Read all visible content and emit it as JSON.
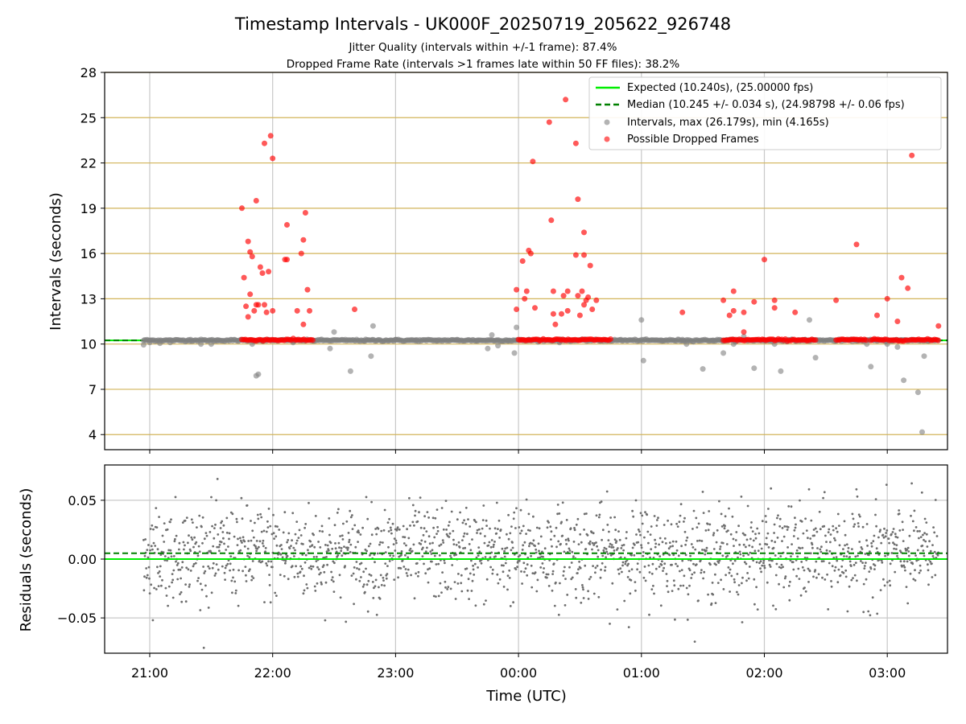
{
  "colors": {
    "expected": "#00ee00",
    "median": "#008000",
    "intervals": "#808080",
    "dropped": "#ff0000",
    "residuals": "#6e6e6e",
    "hgrid_top": "#d2b45a",
    "grid": "#c8c8c8"
  },
  "chart_data": [
    {
      "type": "scatter",
      "title": "Timestamp Intervals - UK000F_20250719_205622_926748",
      "subtitle_lines": [
        "Jitter Quality (intervals within +/-1 frame): 87.4%",
        "Dropped Frame Rate (intervals >1 frames late within 50 FF files): 38.2%"
      ],
      "ylabel": "Intervals (seconds)",
      "xlabel": "Time (UTC)",
      "ylim": [
        3,
        28
      ],
      "yticks": [
        4,
        7,
        10,
        13,
        16,
        19,
        22,
        25,
        28
      ],
      "xticks": [
        "21:00",
        "22:00",
        "23:00",
        "00:00",
        "01:00",
        "02:00",
        "03:00"
      ],
      "grid": true,
      "legend_position": "top-right",
      "legend": [
        "Expected (10.240s), (25.00000 fps)",
        "Median (10.245 +/- 0.034 s), (24.98798 +/- 0.06 fps)",
        "Intervals, max (26.179s), min (4.165s)",
        "Possible Dropped Frames"
      ],
      "expected": 10.24,
      "median": 10.245,
      "series": [
        {
          "name": "Intervals, max (26.179s), min (4.165s)",
          "points": [
            [
              "20:57",
              9.95
            ],
            [
              "21:00",
              10.1
            ],
            [
              "21:05",
              10.05
            ],
            [
              "21:10",
              10.1
            ],
            [
              "21:20",
              10.3
            ],
            [
              "21:25",
              10.0
            ],
            [
              "21:30",
              10.0
            ],
            [
              "21:33",
              10.2
            ],
            [
              "21:50",
              10.0
            ],
            [
              "21:52",
              7.9
            ],
            [
              "21:53",
              8.0
            ],
            [
              "21:55",
              10.2
            ],
            [
              "22:10",
              10.1
            ],
            [
              "22:20",
              10.2
            ],
            [
              "22:28",
              9.7
            ],
            [
              "22:30",
              10.8
            ],
            [
              "22:38",
              8.2
            ],
            [
              "22:45",
              10.2
            ],
            [
              "22:48",
              9.2
            ],
            [
              "22:49",
              11.2
            ],
            [
              "23:00",
              10.3
            ],
            [
              "23:10",
              10.2
            ],
            [
              "23:20",
              10.2
            ],
            [
              "23:30",
              10.3
            ],
            [
              "23:40",
              10.2
            ],
            [
              "23:45",
              9.7
            ],
            [
              "23:47",
              10.6
            ],
            [
              "23:50",
              9.9
            ],
            [
              "23:55",
              10.2
            ],
            [
              "23:58",
              9.4
            ],
            [
              "23:59",
              11.1
            ],
            [
              "00:05",
              10.3
            ],
            [
              "00:10",
              10.2
            ],
            [
              "00:20",
              10.1
            ],
            [
              "00:40",
              10.2
            ],
            [
              "00:50",
              10.3
            ],
            [
              "01:00",
              11.6
            ],
            [
              "01:01",
              8.9
            ],
            [
              "01:10",
              10.2
            ],
            [
              "01:20",
              10.3
            ],
            [
              "01:22",
              10.0
            ],
            [
              "01:30",
              8.35
            ],
            [
              "01:35",
              10.2
            ],
            [
              "01:40",
              9.4
            ],
            [
              "01:45",
              10.0
            ],
            [
              "01:50",
              10.5
            ],
            [
              "01:55",
              8.4
            ],
            [
              "02:00",
              10.2
            ],
            [
              "02:05",
              10.0
            ],
            [
              "02:08",
              8.2
            ],
            [
              "02:20",
              10.3
            ],
            [
              "02:22",
              11.6
            ],
            [
              "02:25",
              9.1
            ],
            [
              "02:35",
              10.2
            ],
            [
              "02:45",
              10.3
            ],
            [
              "02:50",
              10.0
            ],
            [
              "02:52",
              8.5
            ],
            [
              "02:55",
              10.2
            ],
            [
              "03:00",
              10.0
            ],
            [
              "03:05",
              9.8
            ],
            [
              "03:08",
              7.6
            ],
            [
              "03:12",
              10.3
            ],
            [
              "03:15",
              6.8
            ],
            [
              "03:17",
              4.17
            ],
            [
              "03:18",
              9.2
            ],
            [
              "03:20",
              10.2
            ]
          ]
        },
        {
          "name": "Possible Dropped Frames",
          "points": [
            [
              "21:45",
              19.0
            ],
            [
              "21:46",
              14.4
            ],
            [
              "21:47",
              12.5
            ],
            [
              "21:48",
              16.8
            ],
            [
              "21:48",
              11.8
            ],
            [
              "21:49",
              16.1
            ],
            [
              "21:49",
              13.3
            ],
            [
              "21:50",
              15.8
            ],
            [
              "21:51",
              12.2
            ],
            [
              "21:52",
              19.5
            ],
            [
              "21:52",
              12.6
            ],
            [
              "21:53",
              12.6
            ],
            [
              "21:54",
              15.1
            ],
            [
              "21:55",
              14.7
            ],
            [
              "21:56",
              12.6
            ],
            [
              "21:56",
              23.3
            ],
            [
              "21:57",
              12.1
            ],
            [
              "21:58",
              14.8
            ],
            [
              "21:59",
              23.8
            ],
            [
              "22:00",
              22.3
            ],
            [
              "22:00",
              12.2
            ],
            [
              "22:06",
              15.6
            ],
            [
              "22:07",
              17.9
            ],
            [
              "22:07",
              15.6
            ],
            [
              "22:12",
              12.2
            ],
            [
              "22:14",
              16.0
            ],
            [
              "22:15",
              16.9
            ],
            [
              "22:15",
              11.3
            ],
            [
              "22:16",
              18.7
            ],
            [
              "22:17",
              13.6
            ],
            [
              "22:18",
              12.2
            ],
            [
              "22:40",
              12.3
            ],
            [
              "23:59",
              13.6
            ],
            [
              "23:59",
              12.3
            ],
            [
              "00:02",
              15.5
            ],
            [
              "00:03",
              13.0
            ],
            [
              "00:04",
              13.5
            ],
            [
              "00:05",
              16.2
            ],
            [
              "00:06",
              16.0
            ],
            [
              "00:07",
              22.1
            ],
            [
              "00:08",
              12.4
            ],
            [
              "00:15",
              24.7
            ],
            [
              "00:16",
              18.2
            ],
            [
              "00:17",
              13.5
            ],
            [
              "00:17",
              12.0
            ],
            [
              "00:18",
              11.3
            ],
            [
              "00:21",
              12.0
            ],
            [
              "00:22",
              13.2
            ],
            [
              "00:23",
              26.2
            ],
            [
              "00:24",
              13.5
            ],
            [
              "00:24",
              12.2
            ],
            [
              "00:28",
              23.3
            ],
            [
              "00:28",
              15.9
            ],
            [
              "00:29",
              19.6
            ],
            [
              "00:29",
              13.2
            ],
            [
              "00:30",
              11.9
            ],
            [
              "00:31",
              13.5
            ],
            [
              "00:32",
              17.4
            ],
            [
              "00:32",
              15.9
            ],
            [
              "00:32",
              12.6
            ],
            [
              "00:33",
              12.9
            ],
            [
              "00:34",
              13.1
            ],
            [
              "00:35",
              15.2
            ],
            [
              "00:36",
              12.3
            ],
            [
              "00:38",
              12.9
            ],
            [
              "01:20",
              12.1
            ],
            [
              "01:40",
              12.9
            ],
            [
              "01:43",
              11.9
            ],
            [
              "01:45",
              12.2
            ],
            [
              "01:45",
              13.5
            ],
            [
              "01:50",
              12.1
            ],
            [
              "01:50",
              10.8
            ],
            [
              "01:55",
              12.8
            ],
            [
              "02:00",
              15.6
            ],
            [
              "02:05",
              12.4
            ],
            [
              "02:05",
              12.9
            ],
            [
              "02:15",
              12.1
            ],
            [
              "02:35",
              12.9
            ],
            [
              "02:45",
              16.6
            ],
            [
              "02:55",
              11.9
            ],
            [
              "03:00",
              13.0
            ],
            [
              "03:05",
              11.5
            ],
            [
              "03:07",
              14.4
            ],
            [
              "03:10",
              13.7
            ],
            [
              "03:12",
              22.5
            ],
            [
              "03:25",
              11.2
            ]
          ]
        }
      ]
    },
    {
      "type": "scatter",
      "ylabel": "Residuals (seconds)",
      "xlabel": "Time (UTC)",
      "ylim": [
        -0.08,
        0.08
      ],
      "yticks": [
        "−0.05",
        "0.00",
        "0.05"
      ],
      "ytick_values": [
        -0.05,
        0.0,
        0.05
      ],
      "xticks": [
        "21:00",
        "22:00",
        "23:00",
        "00:00",
        "01:00",
        "02:00",
        "03:00"
      ],
      "x_range": [
        "20:57",
        "03:25"
      ],
      "expected_residual": 0.0,
      "median_residual": 0.005,
      "residual_spread": 0.02,
      "grid": true
    }
  ]
}
